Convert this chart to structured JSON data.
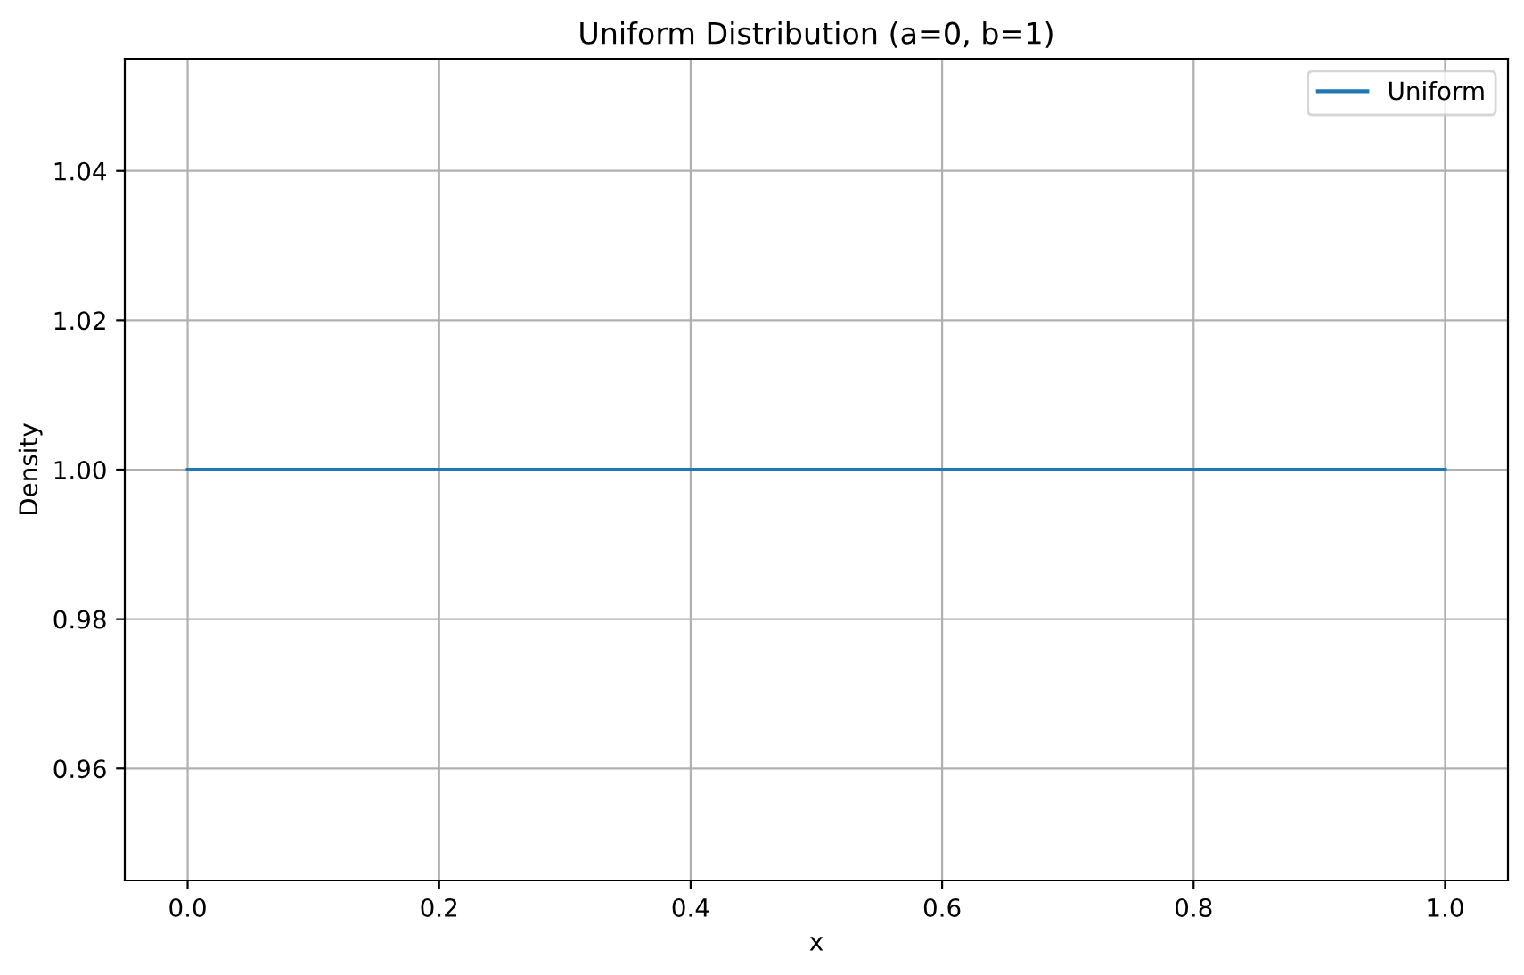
{
  "chart_data": {
    "type": "line",
    "title": "Uniform Distribution (a=0, b=1)",
    "xlabel": "x",
    "ylabel": "Density",
    "x": [
      0,
      1
    ],
    "series": [
      {
        "name": "Uniform",
        "color": "#1f77b4",
        "values": [
          1,
          1
        ]
      }
    ],
    "xlim": [
      -0.05,
      1.05
    ],
    "xticks": [
      {
        "value": 0,
        "label": "0.0"
      },
      {
        "value": 0.2,
        "label": "0.2"
      },
      {
        "value": 0.4,
        "label": "0.4"
      },
      {
        "value": 0.6,
        "label": "0.6"
      },
      {
        "value": 0.8,
        "label": "0.8"
      },
      {
        "value": 1,
        "label": "1.0"
      }
    ],
    "ylim": [
      0.945,
      1.055
    ],
    "yticks": [
      {
        "value": 0.96,
        "label": "0.96"
      },
      {
        "value": 0.98,
        "label": "0.98"
      },
      {
        "value": 1,
        "label": "1.00"
      },
      {
        "value": 1.02,
        "label": "1.02"
      },
      {
        "value": 1.04,
        "label": "1.04"
      }
    ],
    "grid": true,
    "legend": "top right",
    "line_style": "solid",
    "marker": "none"
  }
}
